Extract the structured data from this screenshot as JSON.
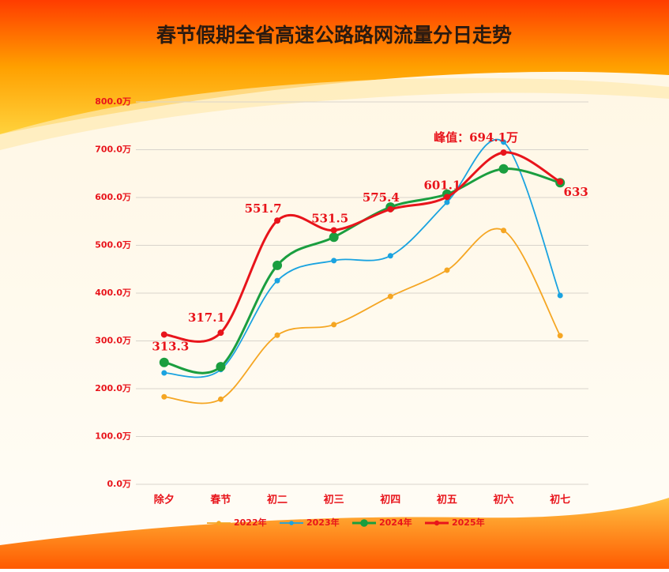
{
  "chart_data": {
    "type": "line",
    "title": "春节假期全省高速公路路网流量分日走势",
    "categories": [
      "除夕",
      "春节",
      "初二",
      "初三",
      "初四",
      "初五",
      "初六",
      "初七"
    ],
    "ylim": [
      0,
      800
    ],
    "yticks": [
      {
        "value": 0,
        "label": "0.0万"
      },
      {
        "value": 100,
        "label": "100.0万"
      },
      {
        "value": 200,
        "label": "200.0万"
      },
      {
        "value": 300,
        "label": "300.0万"
      },
      {
        "value": 400,
        "label": "400.0万"
      },
      {
        "value": 500,
        "label": "500.0万"
      },
      {
        "value": 600,
        "label": "600.0万"
      },
      {
        "value": 700,
        "label": "700.0万"
      },
      {
        "value": 800,
        "label": "800.0万"
      }
    ],
    "grid": true,
    "legend": "bottom",
    "series": [
      {
        "name": "2022年",
        "color": "#f5a623",
        "values": [
          183,
          178,
          312,
          334,
          393,
          448,
          531,
          311
        ]
      },
      {
        "name": "2023年",
        "color": "#1aa3e0",
        "values": [
          233,
          240,
          426,
          468,
          478,
          590,
          716,
          395
        ]
      },
      {
        "name": "2024年",
        "color": "#1a9e3f",
        "values": [
          255,
          246,
          458,
          517,
          580,
          607,
          660,
          631
        ]
      },
      {
        "name": "2025年",
        "color": "#e8141b",
        "values": [
          313.3,
          317.1,
          551.7,
          531.5,
          575.4,
          601.1,
          694.1,
          633
        ],
        "value_labels": [
          "313.3",
          "317.1",
          "551.7",
          "531.5",
          "575.4",
          "601.1",
          "峰值：694.1万",
          "633"
        ]
      }
    ]
  }
}
